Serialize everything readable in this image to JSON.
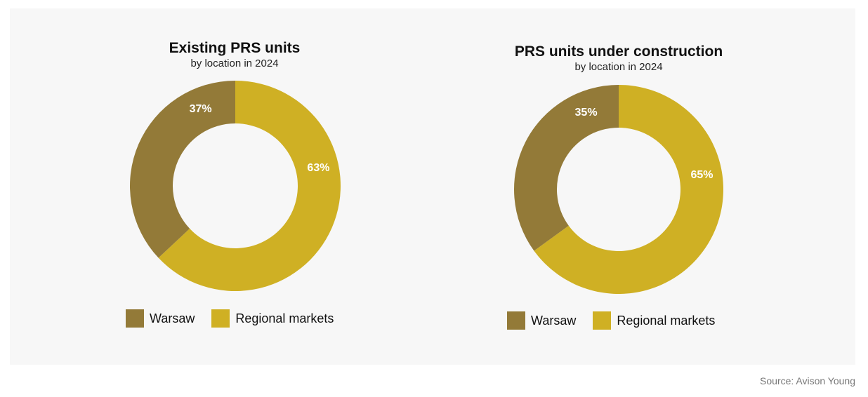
{
  "colors": {
    "warsaw": "#937a38",
    "regional": "#cfb024",
    "label": "#ffffff"
  },
  "chart_data": [
    {
      "type": "pie",
      "title": "Existing PRS units",
      "subtitle": "by location in 2024",
      "categories": [
        "Warsaw",
        "Regional markets"
      ],
      "values": [
        37,
        63
      ],
      "data_labels": [
        "37%",
        "63%"
      ],
      "legend": [
        "Warsaw",
        "Regional markets"
      ],
      "legend_position": "bottom"
    },
    {
      "type": "pie",
      "title": "PRS units under construction",
      "subtitle": "by location in 2024",
      "categories": [
        "Warsaw",
        "Regional markets"
      ],
      "values": [
        35,
        65
      ],
      "data_labels": [
        "35%",
        "65%"
      ],
      "legend": [
        "Warsaw",
        "Regional markets"
      ],
      "legend_position": "bottom"
    }
  ],
  "source": "Source: Avison Young"
}
